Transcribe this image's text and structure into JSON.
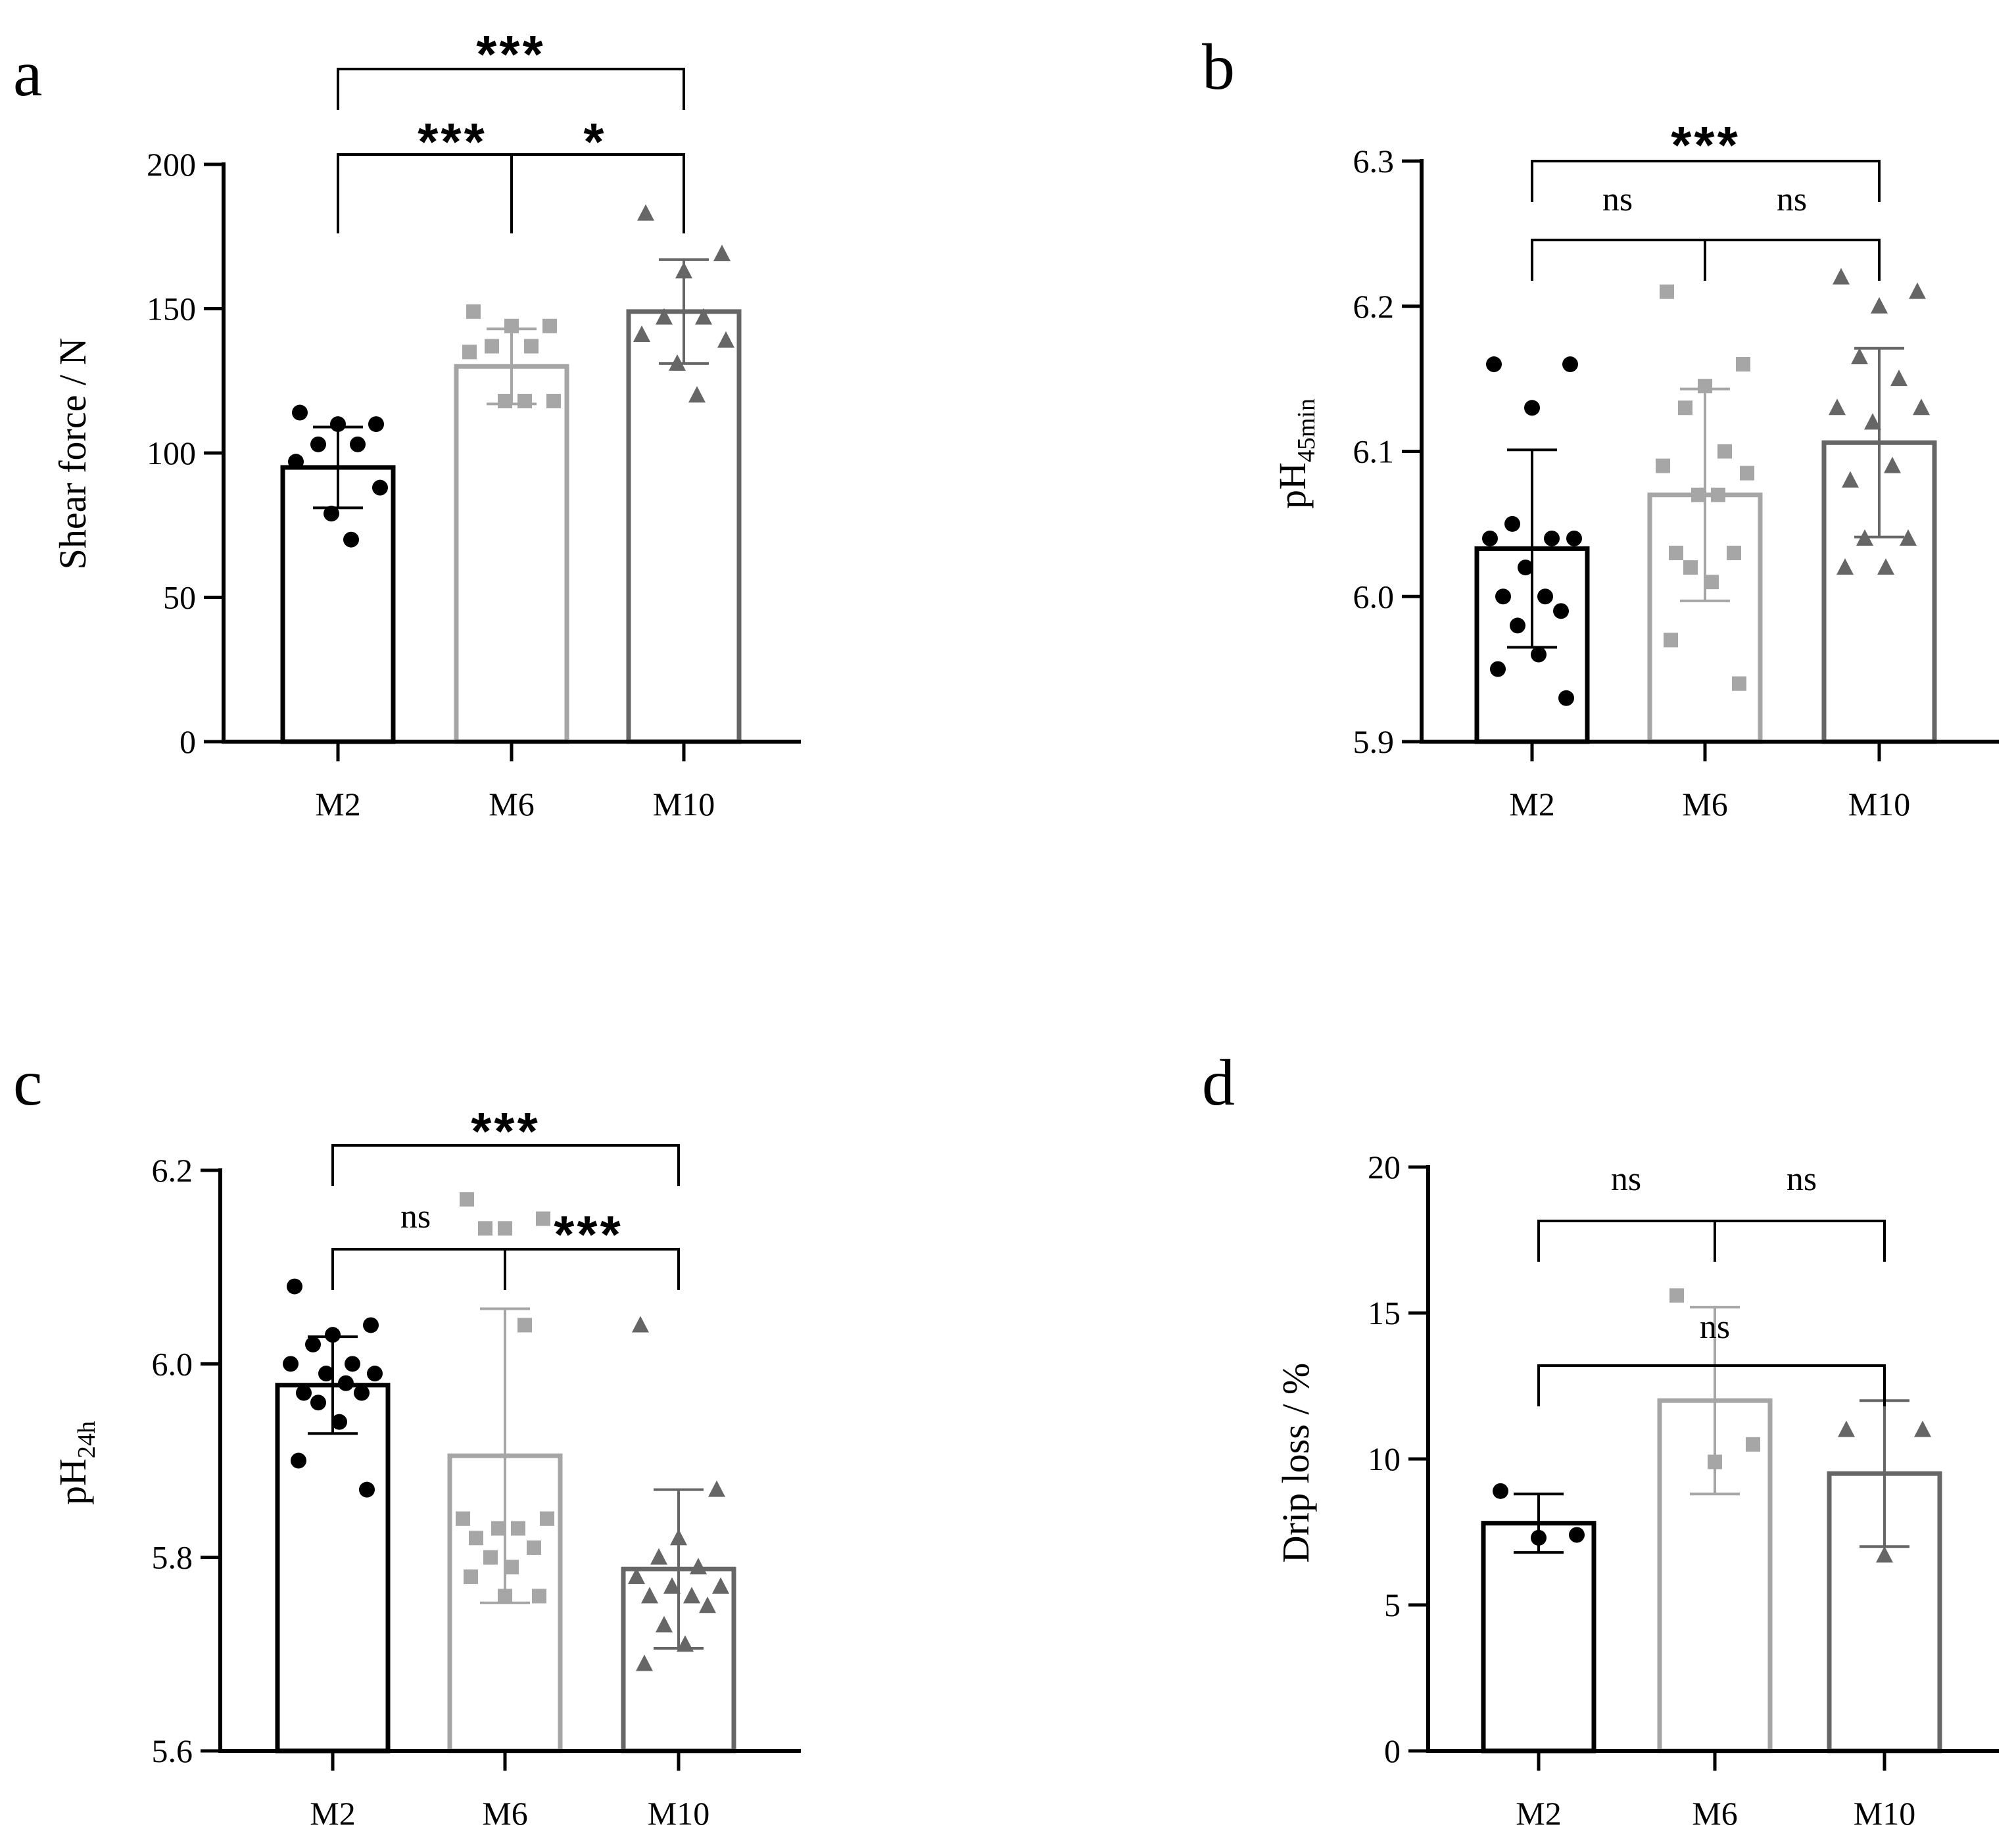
{
  "chart_data": [
    {
      "panel_label": "a",
      "type": "bar",
      "categories": [
        "M2",
        "M6",
        "M10"
      ],
      "ylabel_main": "Shear force / N",
      "ylim": [
        0,
        200
      ],
      "yticks": [
        0,
        50,
        100,
        150,
        200
      ],
      "ytick_labels": [
        "0",
        "50",
        "100",
        "150",
        "200"
      ],
      "means": [
        95,
        130,
        149
      ],
      "sd": [
        14,
        13,
        18
      ],
      "points": [
        [
          114,
          110,
          110,
          103,
          103,
          97,
          88,
          79,
          70
        ],
        [
          149,
          144,
          144,
          137,
          137,
          135,
          118,
          118,
          118
        ],
        [
          183,
          169,
          163,
          147,
          147,
          141,
          139,
          131,
          120
        ]
      ],
      "colors": [
        "#000000",
        "#a6a6a6",
        "#666666"
      ],
      "markers": [
        "circle",
        "square",
        "triangle"
      ],
      "significance": [
        {
          "from": 0,
          "to": 2,
          "label": "***",
          "kind": "pair"
        },
        {
          "from": 0,
          "to": 2,
          "label_left": "***",
          "label_right": "*",
          "kind": "forked"
        }
      ]
    },
    {
      "panel_label": "b",
      "type": "bar",
      "categories": [
        "M2",
        "M6",
        "M10"
      ],
      "ylabel_main": "pH",
      "ylabel_sub": "45min",
      "ylim": [
        5.9,
        6.3
      ],
      "yticks": [
        5.9,
        6.0,
        6.1,
        6.2,
        6.3
      ],
      "ytick_labels": [
        "5.9",
        "6.0",
        "6.1",
        "6.2",
        "6.3"
      ],
      "means": [
        6.033,
        6.07,
        6.106
      ],
      "sd": [
        0.068,
        0.073,
        0.065
      ],
      "points": [
        [
          6.16,
          6.16,
          6.13,
          6.05,
          6.04,
          6.04,
          6.04,
          6.02,
          6.0,
          6.0,
          5.99,
          5.98,
          5.96,
          5.95,
          5.93
        ],
        [
          6.21,
          6.16,
          6.145,
          6.13,
          6.1,
          6.09,
          6.085,
          6.07,
          6.07,
          6.03,
          6.03,
          6.02,
          6.01,
          5.97,
          5.94
        ],
        [
          6.22,
          6.21,
          6.2,
          6.165,
          6.15,
          6.13,
          6.13,
          6.12,
          6.09,
          6.08,
          6.04,
          6.04,
          6.02,
          6.02
        ]
      ],
      "colors": [
        "#000000",
        "#a6a6a6",
        "#666666"
      ],
      "markers": [
        "circle",
        "square",
        "triangle"
      ],
      "significance": [
        {
          "from": 0,
          "to": 2,
          "label": "***",
          "kind": "pair"
        },
        {
          "from": 0,
          "to": 2,
          "label_left": "ns",
          "label_right": "ns",
          "kind": "forked"
        }
      ]
    },
    {
      "panel_label": "c",
      "type": "bar",
      "categories": [
        "M2",
        "M6",
        "M10"
      ],
      "ylabel_main": "pH",
      "ylabel_sub": "24h",
      "ylim": [
        5.6,
        6.2
      ],
      "yticks": [
        5.6,
        5.8,
        6.0,
        6.2
      ],
      "ytick_labels": [
        "5.6",
        "5.8",
        "6.0",
        "6.2"
      ],
      "means": [
        5.978,
        5.905,
        5.788
      ],
      "sd": [
        0.05,
        0.152,
        0.082
      ],
      "points": [
        [
          6.08,
          6.04,
          6.03,
          6.02,
          6.0,
          6.0,
          5.99,
          5.99,
          5.98,
          5.97,
          5.97,
          5.96,
          5.94,
          5.9,
          5.87
        ],
        [
          6.17,
          6.15,
          6.14,
          6.14,
          6.04,
          5.84,
          5.84,
          5.83,
          5.83,
          5.82,
          5.81,
          5.8,
          5.79,
          5.78,
          5.76,
          5.76
        ],
        [
          6.04,
          5.87,
          5.82,
          5.8,
          5.79,
          5.78,
          5.77,
          5.77,
          5.76,
          5.76,
          5.75,
          5.73,
          5.71,
          5.69
        ]
      ],
      "colors": [
        "#000000",
        "#a6a6a6",
        "#666666"
      ],
      "markers": [
        "circle",
        "square",
        "triangle"
      ],
      "significance": [
        {
          "from": 0,
          "to": 2,
          "label": "***",
          "kind": "pair"
        },
        {
          "from": 0,
          "to": 2,
          "label_left": "ns",
          "label_right": "***",
          "kind": "forked"
        }
      ]
    },
    {
      "panel_label": "d",
      "type": "bar",
      "categories": [
        "M2",
        "M6",
        "M10"
      ],
      "ylabel_main": "Drip loss / %",
      "ylim": [
        0,
        20
      ],
      "yticks": [
        0,
        5,
        10,
        15,
        20
      ],
      "ytick_labels": [
        "0",
        "5",
        "10",
        "15",
        "20"
      ],
      "means": [
        7.8,
        12.0,
        9.5
      ],
      "sd": [
        1.0,
        3.2,
        2.5
      ],
      "points": [
        [
          8.9,
          7.4,
          7.3
        ],
        [
          15.6,
          10.5,
          9.9
        ],
        [
          11.0,
          11.0,
          6.7
        ]
      ],
      "colors": [
        "#000000",
        "#a6a6a6",
        "#666666"
      ],
      "markers": [
        "circle",
        "square",
        "triangle"
      ],
      "significance": [
        {
          "from": 0,
          "to": 2,
          "label_left": "ns",
          "label_right": "ns",
          "kind": "forked"
        },
        {
          "from": 0,
          "to": 2,
          "label": "ns",
          "kind": "pair"
        }
      ]
    }
  ]
}
